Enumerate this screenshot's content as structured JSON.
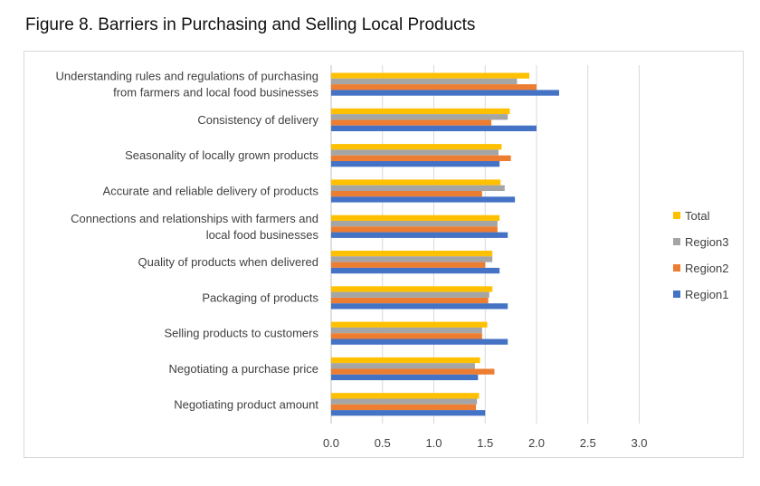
{
  "page_title": "Figure 8. Barriers in Purchasing and Selling Local Products",
  "chart_data": {
    "type": "bar",
    "orientation": "horizontal",
    "title": "Figure 8. Barriers in Purchasing and Selling Local Products",
    "xlabel": "",
    "ylabel": "",
    "xlim": [
      0,
      3.0
    ],
    "x_ticks": [
      "0.0",
      "0.5",
      "1.0",
      "1.5",
      "2.0",
      "2.5",
      "3.0"
    ],
    "grid": "vertical",
    "legend_position": "right",
    "categories": [
      [
        "Understanding rules and regulations of purchasing",
        "from farmers and local food businesses"
      ],
      [
        "Consistency of delivery"
      ],
      [
        "Seasonality of locally grown products"
      ],
      [
        "Accurate and reliable delivery of products"
      ],
      [
        "Connections and relationships with farmers and",
        "local food businesses"
      ],
      [
        "Quality of products when delivered"
      ],
      [
        "Packaging of products"
      ],
      [
        "Selling products to customers"
      ],
      [
        "Negotiating a purchase price"
      ],
      [
        "Negotiating product amount"
      ]
    ],
    "series": [
      {
        "name": "Total",
        "color": "#FFC000",
        "values": [
          1.93,
          1.74,
          1.66,
          1.65,
          1.64,
          1.57,
          1.57,
          1.52,
          1.45,
          1.44
        ]
      },
      {
        "name": "Region3",
        "color": "#A5A5A5",
        "values": [
          1.81,
          1.72,
          1.63,
          1.69,
          1.62,
          1.57,
          1.54,
          1.47,
          1.4,
          1.42
        ]
      },
      {
        "name": "Region2",
        "color": "#ED7D31",
        "values": [
          2.0,
          1.56,
          1.75,
          1.47,
          1.62,
          1.5,
          1.53,
          1.47,
          1.59,
          1.41
        ]
      },
      {
        "name": "Region1",
        "color": "#4472C4",
        "values": [
          2.22,
          2.0,
          1.64,
          1.79,
          1.72,
          1.64,
          1.72,
          1.72,
          1.43,
          1.5
        ]
      }
    ],
    "legend_order": [
      "Total",
      "Region3",
      "Region2",
      "Region1"
    ]
  }
}
